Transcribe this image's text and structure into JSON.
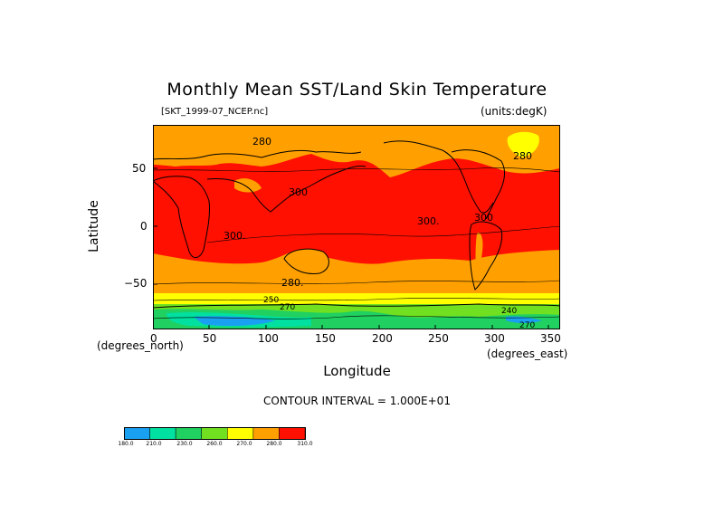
{
  "title": "Monthly Mean SST/Land Skin Temperature",
  "file_label": "[SKT_1999-07_NCEP.nc]",
  "units_label": "(units:degK)",
  "y_axis": {
    "label": "Latitude",
    "units": "(degrees_north)",
    "ticks": [
      "50",
      "0",
      "−50"
    ]
  },
  "x_axis": {
    "label": "Longitude",
    "units": "(degrees_east)",
    "ticks": [
      "0",
      "50",
      "100",
      "150",
      "200",
      "250",
      "300",
      "350"
    ]
  },
  "contour_interval": "CONTOUR INTERVAL = 1.000E+01",
  "contour_labels": [
    "280",
    "280",
    "300",
    "300",
    "300.",
    "300.",
    "280.",
    "250",
    "270",
    "240",
    "270"
  ],
  "colorbar": {
    "labels": [
      "180.0",
      "210.0",
      "230.0",
      "260.0",
      "270.0",
      "280.0",
      "310.0"
    ],
    "colors": [
      "#1aa0f0",
      "#00e0a0",
      "#20d060",
      "#70e020",
      "#ffff00",
      "#ffa000",
      "#ff1000"
    ]
  },
  "map_colors": {
    "warm": "#ff1000",
    "mild": "#ffa000",
    "cool": "#ffff00",
    "cold": "#70e020",
    "colder": "#20d060",
    "coldest": "#1aa0f0",
    "very_cold": "#00e0a0"
  }
}
